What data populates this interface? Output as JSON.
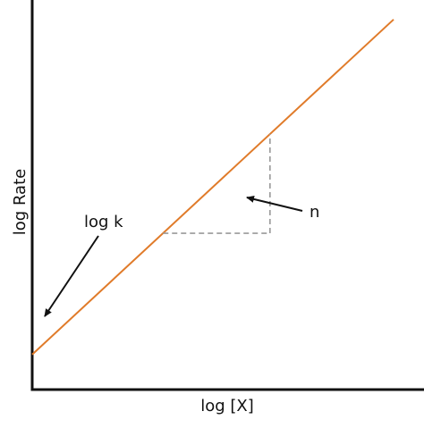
{
  "chart_data": {
    "type": "line",
    "x_label": "log [X]",
    "y_label": "log Rate",
    "grid": false,
    "series": [
      {
        "x": [
          0,
          1
        ],
        "y": [
          0.09,
          0.95
        ]
      }
    ],
    "annotations": {
      "intercept_label": "log k",
      "slope_label": "n"
    },
    "colors": {
      "line": "#e07b2a",
      "axes": "#111111",
      "guide": "#999999"
    }
  }
}
